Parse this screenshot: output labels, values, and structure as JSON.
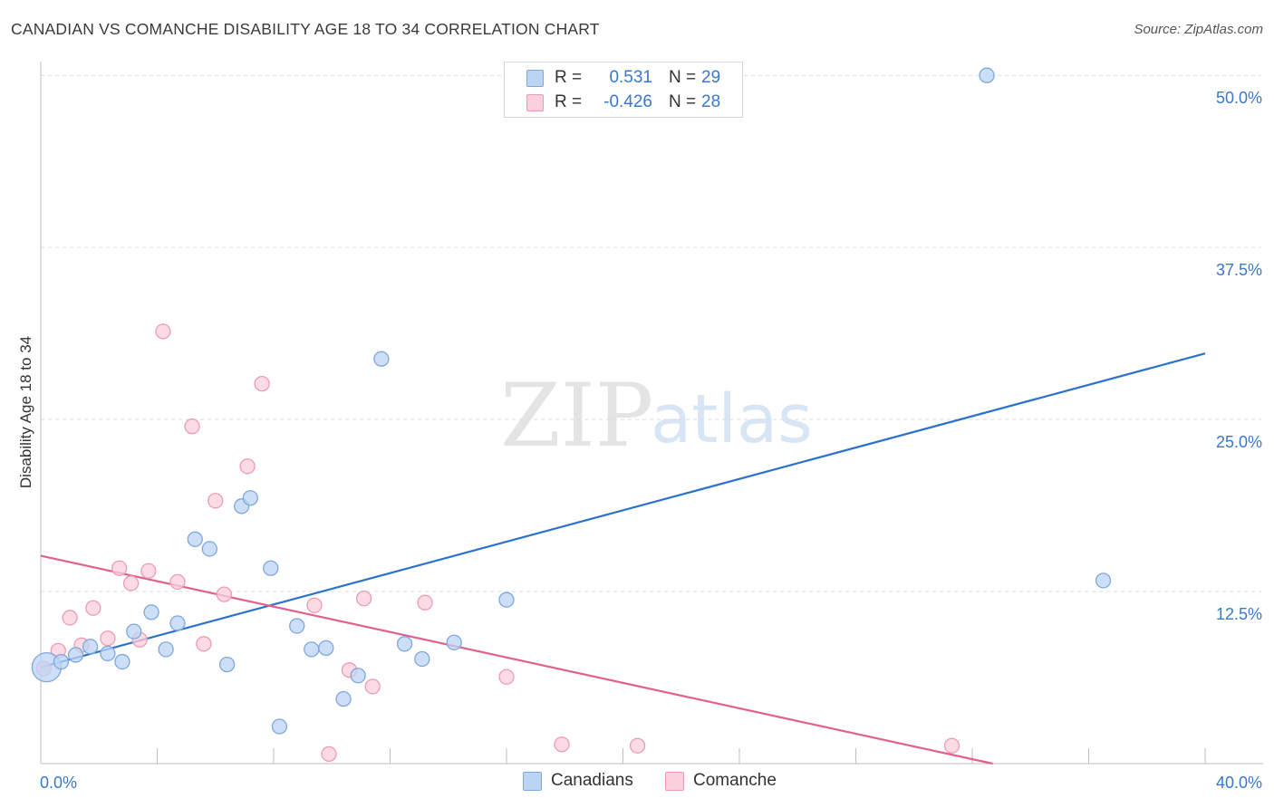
{
  "title": "CANADIAN VS COMANCHE DISABILITY AGE 18 TO 34 CORRELATION CHART",
  "source": "Source: ZipAtlas.com",
  "watermark": {
    "part1": "ZIP",
    "part2": "atlas"
  },
  "legend": {
    "rows": [
      {
        "r_label": "R =",
        "r_value": "0.531",
        "n_label": "N =",
        "n_value": "29"
      },
      {
        "r_label": "R =",
        "r_value": "-0.426",
        "n_label": "N =",
        "n_value": "28"
      }
    ]
  },
  "bottom_legend": {
    "series1": "Canadians",
    "series2": "Comanche"
  },
  "colors": {
    "blue_fill": "#bcd4f4",
    "blue_stroke": "#7fa7de",
    "blue_line": "#2b72cc",
    "pink_fill": "#fccfdc",
    "pink_stroke": "#ec9bb5",
    "pink_line": "#e2608e",
    "label_blue": "#3a78c9"
  },
  "chart_data": {
    "type": "scatter",
    "title": "CANADIAN VS COMANCHE DISABILITY AGE 18 TO 34 CORRELATION CHART",
    "xlabel": "",
    "ylabel": "Disability Age 18 to 34",
    "xlim": [
      0,
      40
    ],
    "ylim": [
      0,
      51
    ],
    "x_tick_labels": [
      "0.0%",
      "40.0%"
    ],
    "y_ticks": [
      12.5,
      25.0,
      37.5,
      50.0
    ],
    "y_tick_labels": [
      "12.5%",
      "25.0%",
      "37.5%",
      "50.0%"
    ],
    "grid": true,
    "series": [
      {
        "name": "Canadians",
        "r": 0.531,
        "n": 29,
        "trend": {
          "x": [
            0,
            40
          ],
          "y": [
            7.0,
            29.8
          ]
        },
        "points": [
          {
            "x": 0.2,
            "y": 7.0,
            "big": true
          },
          {
            "x": 0.7,
            "y": 7.4
          },
          {
            "x": 1.2,
            "y": 7.9
          },
          {
            "x": 1.7,
            "y": 8.5
          },
          {
            "x": 2.3,
            "y": 8.0
          },
          {
            "x": 2.8,
            "y": 7.4
          },
          {
            "x": 3.2,
            "y": 9.6
          },
          {
            "x": 3.8,
            "y": 11.0
          },
          {
            "x": 4.3,
            "y": 8.3
          },
          {
            "x": 4.7,
            "y": 10.2
          },
          {
            "x": 5.3,
            "y": 16.3
          },
          {
            "x": 5.8,
            "y": 15.6
          },
          {
            "x": 6.4,
            "y": 7.2
          },
          {
            "x": 6.9,
            "y": 18.7
          },
          {
            "x": 7.2,
            "y": 19.3
          },
          {
            "x": 7.9,
            "y": 14.2
          },
          {
            "x": 8.2,
            "y": 2.7
          },
          {
            "x": 8.8,
            "y": 10.0
          },
          {
            "x": 9.3,
            "y": 8.3
          },
          {
            "x": 9.8,
            "y": 8.4
          },
          {
            "x": 10.4,
            "y": 4.7
          },
          {
            "x": 10.9,
            "y": 6.4
          },
          {
            "x": 11.7,
            "y": 29.4
          },
          {
            "x": 12.5,
            "y": 8.7
          },
          {
            "x": 13.1,
            "y": 7.6
          },
          {
            "x": 14.2,
            "y": 8.8
          },
          {
            "x": 16.0,
            "y": 11.9
          },
          {
            "x": 32.5,
            "y": 50.0
          },
          {
            "x": 36.5,
            "y": 13.3
          }
        ]
      },
      {
        "name": "Comanche",
        "r": -0.426,
        "n": 28,
        "trend": {
          "x": [
            0,
            32.7
          ],
          "y": [
            15.1,
            0
          ]
        },
        "points": [
          {
            "x": 0.1,
            "y": 6.9
          },
          {
            "x": 0.6,
            "y": 8.2
          },
          {
            "x": 1.0,
            "y": 10.6
          },
          {
            "x": 1.4,
            "y": 8.6
          },
          {
            "x": 1.8,
            "y": 11.3
          },
          {
            "x": 2.3,
            "y": 9.1
          },
          {
            "x": 2.7,
            "y": 14.2
          },
          {
            "x": 3.1,
            "y": 13.1
          },
          {
            "x": 3.4,
            "y": 9.0
          },
          {
            "x": 3.7,
            "y": 14.0
          },
          {
            "x": 4.2,
            "y": 31.4
          },
          {
            "x": 4.7,
            "y": 13.2
          },
          {
            "x": 5.2,
            "y": 24.5
          },
          {
            "x": 5.6,
            "y": 8.7
          },
          {
            "x": 6.0,
            "y": 19.1
          },
          {
            "x": 6.3,
            "y": 12.3
          },
          {
            "x": 7.1,
            "y": 21.6
          },
          {
            "x": 7.6,
            "y": 27.6
          },
          {
            "x": 9.4,
            "y": 11.5
          },
          {
            "x": 9.9,
            "y": 0.7
          },
          {
            "x": 10.6,
            "y": 6.8
          },
          {
            "x": 11.1,
            "y": 12.0
          },
          {
            "x": 11.4,
            "y": 5.6
          },
          {
            "x": 13.2,
            "y": 11.7
          },
          {
            "x": 16.0,
            "y": 6.3
          },
          {
            "x": 17.9,
            "y": 1.4
          },
          {
            "x": 20.5,
            "y": 1.3
          },
          {
            "x": 31.3,
            "y": 1.3
          }
        ]
      }
    ]
  }
}
